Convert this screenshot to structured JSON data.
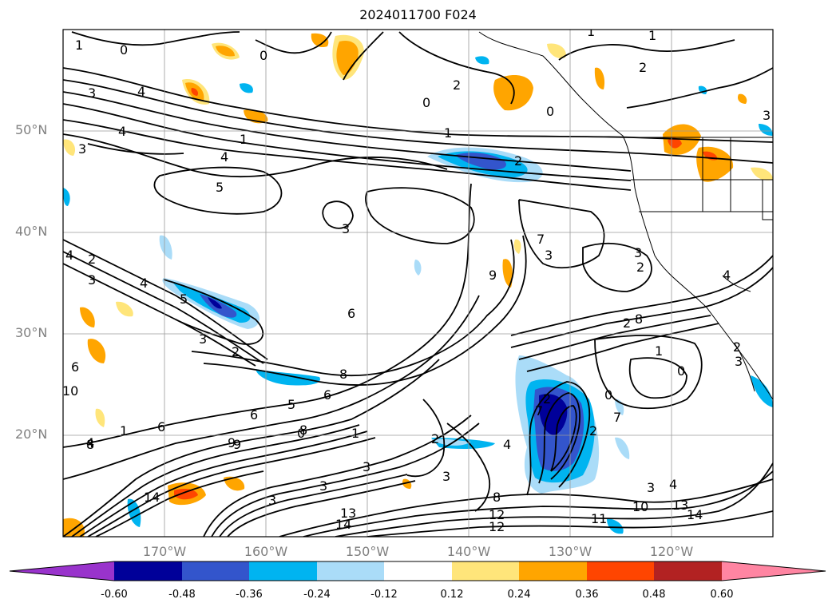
{
  "title": "2024011700 F024",
  "latitude_labels": [
    "50°N",
    "40°N",
    "30°N",
    "20°N"
  ],
  "longitude_labels": [
    "170°W",
    "160°W",
    "150°W",
    "140°W",
    "130°W",
    "120°W"
  ],
  "colorbar": {
    "ticks": [
      "-0.60",
      "-0.48",
      "-0.36",
      "-0.24",
      "-0.12",
      "0.12",
      "0.24",
      "0.36",
      "0.48",
      "0.60"
    ],
    "colors": [
      "#9933cc",
      "#000099",
      "#3355cc",
      "#00b4f0",
      "#aadcf8",
      "#ffffff",
      "#ffe57a",
      "#ffa500",
      "#ff4500",
      "#b22222",
      "#ff85a2"
    ]
  },
  "contour_labels": [
    "1",
    "0",
    "2",
    "0",
    "1",
    "4",
    "1",
    "2",
    "3",
    "3",
    "4",
    "4",
    "5",
    "3",
    "3",
    "1",
    "9",
    "3",
    "2",
    "2",
    "5",
    "3",
    "4",
    "7",
    "6",
    "5",
    "3",
    "2",
    "8",
    "6",
    "6",
    "2",
    "9",
    "8",
    "1",
    "0",
    "7",
    "2",
    "3",
    "0",
    "4",
    "6",
    "1",
    "2",
    "3",
    "3",
    "8",
    "9",
    "6",
    "7",
    "3",
    "3",
    "0",
    "2",
    "13",
    "14",
    "14",
    "12",
    "11",
    "10",
    "12",
    "13",
    "14",
    "4",
    "4",
    "2",
    "10",
    "8",
    "3",
    "1",
    "8",
    "4",
    "0",
    "1",
    "3",
    "4",
    "2",
    "0"
  ]
}
